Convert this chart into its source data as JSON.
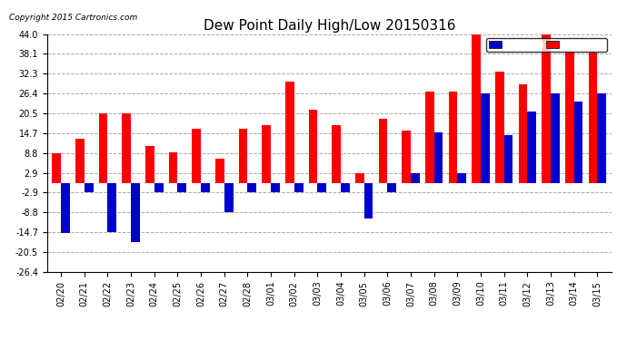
{
  "title": "Dew Point Daily High/Low 20150316",
  "copyright": "Copyright 2015 Cartronics.com",
  "dates": [
    "02/20",
    "02/21",
    "02/22",
    "02/23",
    "02/24",
    "02/25",
    "02/26",
    "02/27",
    "02/28",
    "03/01",
    "03/02",
    "03/03",
    "03/04",
    "03/05",
    "03/06",
    "03/07",
    "03/08",
    "03/09",
    "03/10",
    "03/11",
    "03/12",
    "03/13",
    "03/14",
    "03/15"
  ],
  "high": [
    8.8,
    13.0,
    20.5,
    20.5,
    11.0,
    9.0,
    16.0,
    7.0,
    16.0,
    17.0,
    30.0,
    21.5,
    17.0,
    2.9,
    19.0,
    15.5,
    27.0,
    27.0,
    44.0,
    33.0,
    29.0,
    44.0,
    38.5,
    38.5
  ],
  "low": [
    -15.0,
    -2.9,
    -14.7,
    -17.5,
    -2.9,
    -2.9,
    -2.9,
    -8.8,
    -2.9,
    -2.9,
    -2.9,
    -2.9,
    -2.9,
    -10.5,
    -2.9,
    2.9,
    15.0,
    2.9,
    26.4,
    14.0,
    21.0,
    26.4,
    24.0,
    26.4
  ],
  "bar_width": 0.38,
  "ylim": [
    -26.4,
    44.0
  ],
  "yticks": [
    -26.4,
    -20.5,
    -14.7,
    -8.8,
    -2.9,
    2.9,
    8.8,
    14.7,
    20.5,
    26.4,
    32.3,
    38.1,
    44.0
  ],
  "high_color": "#ff0000",
  "low_color": "#0000cc",
  "bg_color": "#ffffff",
  "grid_color": "#aaaaaa",
  "title_fontsize": 11,
  "tick_fontsize": 7,
  "copyright_fontsize": 6.5
}
